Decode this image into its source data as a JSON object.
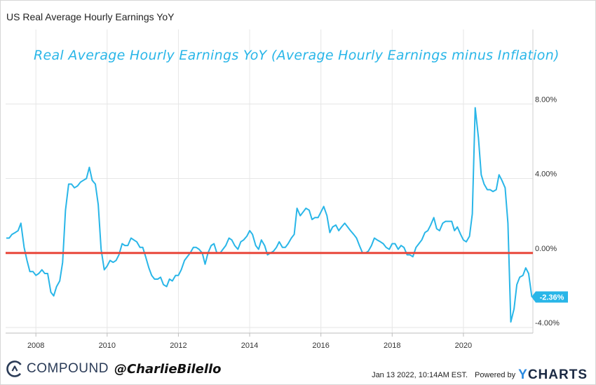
{
  "header": {
    "title": "US Real Average Hourly Earnings YoY"
  },
  "annotation": "Real Average Hourly Earnings YoY (Average Hourly Earnings minus Inflation)",
  "footer": {
    "brand_name": "COMPOUND",
    "handle": "@CharlieBilello",
    "timestamp": "Jan 13 2022, 10:14AM EST.",
    "powered_by": "Powered by",
    "ycharts_y": "Y",
    "ycharts_rest": "CHARTS"
  },
  "colors": {
    "line": "#29b6e8",
    "zero_line": "#e8473a",
    "badge": "#29b6e8",
    "grid": "#e6e6e6"
  },
  "chart_data": {
    "type": "line",
    "title": "US Real Average Hourly Earnings YoY",
    "xlabel": "",
    "ylabel": "",
    "xlim": [
      2007.15,
      2021.95
    ],
    "ylim": [
      -4.3,
      12
    ],
    "x_ticks": [
      "2008",
      "2010",
      "2012",
      "2014",
      "2016",
      "2018",
      "2020"
    ],
    "x_tick_values": [
      2008,
      2010,
      2012,
      2014,
      2016,
      2018,
      2020
    ],
    "y_ticks": [
      "8.00%",
      "4.00%",
      "0.00%",
      "-4.00%"
    ],
    "y_tick_values": [
      8,
      4,
      0,
      -4
    ],
    "grid": true,
    "reference_line": 0,
    "last_value_label": "-2.36%",
    "series": [
      {
        "values": [
          [
            2007.17,
            0.8
          ],
          [
            2007.25,
            0.8
          ],
          [
            2007.33,
            1.0
          ],
          [
            2007.42,
            1.1
          ],
          [
            2007.5,
            1.2
          ],
          [
            2007.58,
            1.6
          ],
          [
            2007.67,
            0.3
          ],
          [
            2007.75,
            -0.4
          ],
          [
            2007.83,
            -1.0
          ],
          [
            2007.92,
            -1.0
          ],
          [
            2008.0,
            -1.2
          ],
          [
            2008.08,
            -1.1
          ],
          [
            2008.17,
            -0.9
          ],
          [
            2008.25,
            -1.1
          ],
          [
            2008.33,
            -1.1
          ],
          [
            2008.42,
            -2.1
          ],
          [
            2008.5,
            -2.3
          ],
          [
            2008.58,
            -1.8
          ],
          [
            2008.67,
            -1.5
          ],
          [
            2008.75,
            -0.5
          ],
          [
            2008.83,
            2.3
          ],
          [
            2008.92,
            3.7
          ],
          [
            2009.0,
            3.7
          ],
          [
            2009.08,
            3.5
          ],
          [
            2009.17,
            3.6
          ],
          [
            2009.25,
            3.8
          ],
          [
            2009.33,
            3.9
          ],
          [
            2009.42,
            4.0
          ],
          [
            2009.5,
            4.6
          ],
          [
            2009.58,
            3.9
          ],
          [
            2009.67,
            3.7
          ],
          [
            2009.75,
            2.6
          ],
          [
            2009.83,
            0.2
          ],
          [
            2009.92,
            -0.9
          ],
          [
            2010.0,
            -0.7
          ],
          [
            2010.08,
            -0.4
          ],
          [
            2010.17,
            -0.5
          ],
          [
            2010.25,
            -0.4
          ],
          [
            2010.33,
            -0.1
          ],
          [
            2010.42,
            0.5
          ],
          [
            2010.5,
            0.4
          ],
          [
            2010.58,
            0.4
          ],
          [
            2010.67,
            0.8
          ],
          [
            2010.75,
            0.7
          ],
          [
            2010.83,
            0.6
          ],
          [
            2010.92,
            0.3
          ],
          [
            2011.0,
            0.3
          ],
          [
            2011.08,
            -0.2
          ],
          [
            2011.17,
            -0.8
          ],
          [
            2011.25,
            -1.2
          ],
          [
            2011.33,
            -1.4
          ],
          [
            2011.42,
            -1.4
          ],
          [
            2011.5,
            -1.3
          ],
          [
            2011.58,
            -1.7
          ],
          [
            2011.67,
            -1.8
          ],
          [
            2011.75,
            -1.4
          ],
          [
            2011.83,
            -1.5
          ],
          [
            2011.92,
            -1.2
          ],
          [
            2012.0,
            -1.2
          ],
          [
            2012.08,
            -0.9
          ],
          [
            2012.17,
            -0.4
          ],
          [
            2012.25,
            -0.2
          ],
          [
            2012.33,
            0.0
          ],
          [
            2012.42,
            0.3
          ],
          [
            2012.5,
            0.3
          ],
          [
            2012.58,
            0.2
          ],
          [
            2012.67,
            0.0
          ],
          [
            2012.75,
            -0.6
          ],
          [
            2012.83,
            0.0
          ],
          [
            2012.92,
            0.4
          ],
          [
            2013.0,
            0.5
          ],
          [
            2013.08,
            0.0
          ],
          [
            2013.17,
            0.0
          ],
          [
            2013.25,
            0.2
          ],
          [
            2013.33,
            0.4
          ],
          [
            2013.42,
            0.8
          ],
          [
            2013.5,
            0.7
          ],
          [
            2013.58,
            0.4
          ],
          [
            2013.67,
            0.2
          ],
          [
            2013.75,
            0.6
          ],
          [
            2013.83,
            0.7
          ],
          [
            2013.92,
            0.9
          ],
          [
            2014.0,
            1.2
          ],
          [
            2014.08,
            1.0
          ],
          [
            2014.17,
            0.4
          ],
          [
            2014.25,
            0.2
          ],
          [
            2014.33,
            0.7
          ],
          [
            2014.42,
            0.4
          ],
          [
            2014.5,
            -0.1
          ],
          [
            2014.58,
            0.0
          ],
          [
            2014.67,
            0.1
          ],
          [
            2014.75,
            0.3
          ],
          [
            2014.83,
            0.6
          ],
          [
            2014.92,
            0.3
          ],
          [
            2015.0,
            0.3
          ],
          [
            2015.08,
            0.5
          ],
          [
            2015.17,
            0.8
          ],
          [
            2015.25,
            1.0
          ],
          [
            2015.33,
            2.4
          ],
          [
            2015.42,
            2.0
          ],
          [
            2015.5,
            2.2
          ],
          [
            2015.58,
            2.4
          ],
          [
            2015.67,
            2.3
          ],
          [
            2015.75,
            1.8
          ],
          [
            2015.83,
            1.9
          ],
          [
            2015.92,
            1.9
          ],
          [
            2016.0,
            2.2
          ],
          [
            2016.08,
            2.5
          ],
          [
            2016.17,
            2.0
          ],
          [
            2016.25,
            1.1
          ],
          [
            2016.33,
            1.4
          ],
          [
            2016.42,
            1.5
          ],
          [
            2016.5,
            1.2
          ],
          [
            2016.58,
            1.4
          ],
          [
            2016.67,
            1.6
          ],
          [
            2016.75,
            1.4
          ],
          [
            2016.83,
            1.2
          ],
          [
            2016.92,
            1.0
          ],
          [
            2017.0,
            0.8
          ],
          [
            2017.08,
            0.4
          ],
          [
            2017.17,
            0.0
          ],
          [
            2017.25,
            0.0
          ],
          [
            2017.33,
            0.1
          ],
          [
            2017.42,
            0.4
          ],
          [
            2017.5,
            0.8
          ],
          [
            2017.58,
            0.7
          ],
          [
            2017.67,
            0.6
          ],
          [
            2017.75,
            0.5
          ],
          [
            2017.83,
            0.3
          ],
          [
            2017.92,
            0.2
          ],
          [
            2018.0,
            0.5
          ],
          [
            2018.08,
            0.5
          ],
          [
            2018.17,
            0.2
          ],
          [
            2018.25,
            0.4
          ],
          [
            2018.33,
            0.3
          ],
          [
            2018.42,
            -0.1
          ],
          [
            2018.5,
            -0.1
          ],
          [
            2018.58,
            -0.2
          ],
          [
            2018.67,
            0.3
          ],
          [
            2018.75,
            0.5
          ],
          [
            2018.83,
            0.7
          ],
          [
            2018.92,
            1.1
          ],
          [
            2019.0,
            1.2
          ],
          [
            2019.08,
            1.5
          ],
          [
            2019.17,
            1.9
          ],
          [
            2019.25,
            1.3
          ],
          [
            2019.33,
            1.2
          ],
          [
            2019.42,
            1.6
          ],
          [
            2019.5,
            1.7
          ],
          [
            2019.58,
            1.7
          ],
          [
            2019.67,
            1.7
          ],
          [
            2019.75,
            1.2
          ],
          [
            2019.83,
            1.4
          ],
          [
            2019.92,
            1.0
          ],
          [
            2020.0,
            0.7
          ],
          [
            2020.08,
            0.6
          ],
          [
            2020.17,
            0.9
          ],
          [
            2020.25,
            2.1
          ],
          [
            2020.33,
            7.8
          ],
          [
            2020.42,
            6.2
          ],
          [
            2020.5,
            4.2
          ],
          [
            2020.58,
            3.7
          ],
          [
            2020.67,
            3.4
          ],
          [
            2020.75,
            3.4
          ],
          [
            2020.83,
            3.3
          ],
          [
            2020.92,
            3.4
          ],
          [
            2021.0,
            4.2
          ],
          [
            2021.08,
            3.9
          ],
          [
            2021.17,
            3.5
          ],
          [
            2021.25,
            1.6
          ],
          [
            2021.33,
            -3.7
          ],
          [
            2021.42,
            -3.0
          ],
          [
            2021.5,
            -1.7
          ],
          [
            2021.58,
            -1.3
          ],
          [
            2021.67,
            -1.2
          ],
          [
            2021.75,
            -0.8
          ],
          [
            2021.83,
            -1.1
          ],
          [
            2021.92,
            -2.36
          ]
        ]
      }
    ]
  }
}
